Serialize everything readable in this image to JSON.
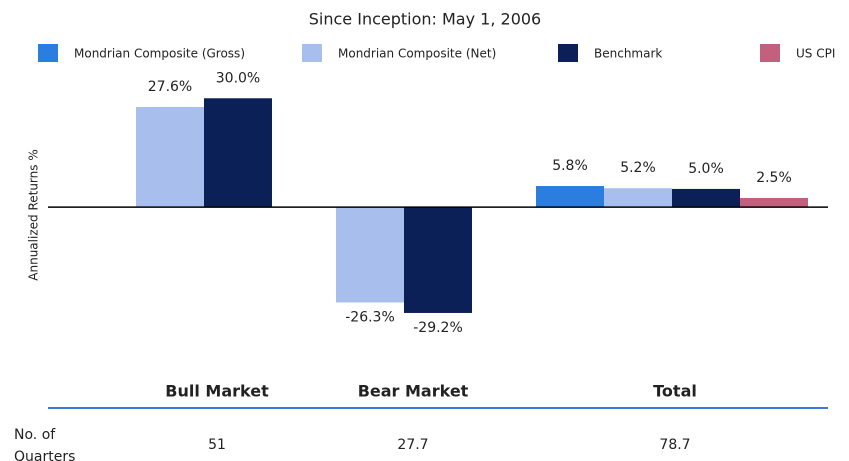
{
  "chart_data": {
    "type": "bar",
    "title": "Since Inception: May 1, 2006",
    "y_label": "Annualized Returns %",
    "categories": [
      "Bull Market",
      "Bear Market",
      "Total"
    ],
    "ylim": [
      -35,
      40
    ],
    "legend": "top",
    "series": [
      {
        "name": "Mondrian Composite (Gross)",
        "color": "#2b7de0",
        "values": [
          null,
          null,
          5.8
        ],
        "value_labels": [
          null,
          null,
          "5.8%"
        ]
      },
      {
        "name": "Mondrian Composite (Net)",
        "color": "#a8bfee",
        "values": [
          27.6,
          -26.3,
          5.2
        ],
        "value_labels": [
          "27.6%",
          "-26.3%",
          "5.2%"
        ]
      },
      {
        "name": "Benchmark",
        "color": "#0a2057",
        "values": [
          30.0,
          -29.2,
          5.0
        ],
        "value_labels": [
          "30.0%",
          "-29.2%",
          "5.0%"
        ]
      },
      {
        "name": "US CPI",
        "color": "#c2607e",
        "values": [
          null,
          null,
          2.5
        ],
        "value_labels": [
          null,
          null,
          "2.5%"
        ]
      }
    ]
  },
  "table": {
    "rows": [
      [
        "No. of Quarters",
        51,
        27.7,
        78.7
      ]
    ]
  }
}
